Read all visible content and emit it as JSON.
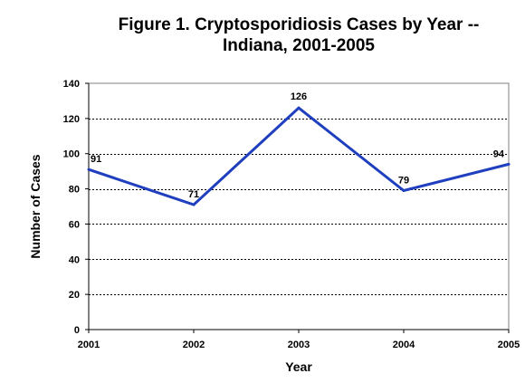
{
  "chart_data": {
    "type": "line",
    "title_lines": [
      "Figure 1. Cryptosporidiosis Cases by Year --",
      "Indiana, 2001-2005"
    ],
    "xlabel": "Year",
    "ylabel": "Number of Cases",
    "categories": [
      "2001",
      "2002",
      "2003",
      "2004",
      "2005"
    ],
    "series": [
      {
        "values": [
          91,
          71,
          126,
          79,
          94
        ]
      }
    ],
    "data_labels": [
      "91",
      "71",
      "126",
      "79",
      "94"
    ],
    "ylim": [
      0,
      140
    ],
    "yticks": [
      0,
      20,
      40,
      60,
      80,
      100,
      120,
      140
    ],
    "ytick_labels": [
      "0",
      "20",
      "40",
      "60",
      "80",
      "100",
      "120",
      "140"
    ],
    "grid": "horizontal dotted",
    "legend": "none",
    "line_color": "#1f3fbf"
  }
}
